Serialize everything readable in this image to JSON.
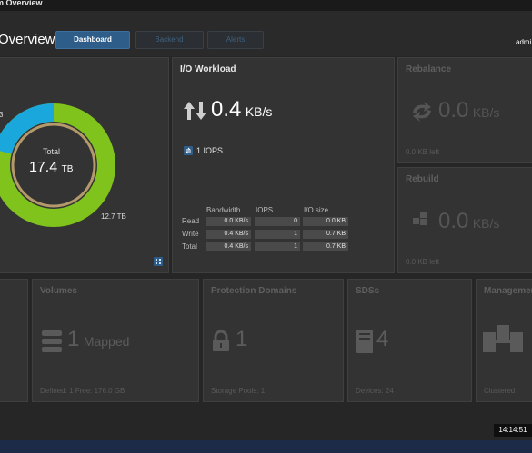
{
  "window": {
    "title": "m Overview"
  },
  "header": {
    "page_title": "Overview",
    "tabs": [
      {
        "label": "Dashboard",
        "active": true
      },
      {
        "label": "Backend",
        "active": false
      },
      {
        "label": "Alerts",
        "active": false
      }
    ],
    "user": "admi"
  },
  "capacity": {
    "center_label": "Total",
    "total_value": "17.4",
    "total_unit": "TB",
    "left_value": "3",
    "right_value": "12.7 TB",
    "colors": {
      "primary": "#7fc31c",
      "secondary": "#1aa7dc",
      "ring": "#b49a6a"
    }
  },
  "io_workload": {
    "title": "I/O Workload",
    "bandwidth_value": "0.4",
    "bandwidth_unit": "KB/s",
    "iops_label": "1 IOPS",
    "columns": [
      "Bandwidth",
      "IOPS",
      "I/O size"
    ],
    "rows": [
      {
        "label": "Read",
        "bandwidth": "0.0 KB/s",
        "iops": "0",
        "io_size": "0.0 KB"
      },
      {
        "label": "Write",
        "bandwidth": "0.4 KB/s",
        "iops": "1",
        "io_size": "0.7 KB"
      },
      {
        "label": "Total",
        "bandwidth": "0.4 KB/s",
        "iops": "1",
        "io_size": "0.7 KB"
      }
    ]
  },
  "rebalance": {
    "title": "Rebalance",
    "value": "0.0",
    "unit": "KB/s",
    "footer": "0.0 KB left"
  },
  "rebuild": {
    "title": "Rebuild",
    "value": "0.0",
    "unit": "KB/s",
    "footer": "0.0 KB left"
  },
  "volumes": {
    "title": "Volumes",
    "count": "1",
    "label": "Mapped",
    "footer": "Defined: 1  Free: 176.0 GB"
  },
  "protection_domains": {
    "title": "Protection Domains",
    "count": "1",
    "footer": "Storage Pools: 1"
  },
  "sds": {
    "title": "SDSs",
    "count": "4",
    "footer": "Devices: 24"
  },
  "management": {
    "title": "Managemen",
    "footer": "Clustered"
  },
  "status": {
    "clock": "14:14:51"
  }
}
